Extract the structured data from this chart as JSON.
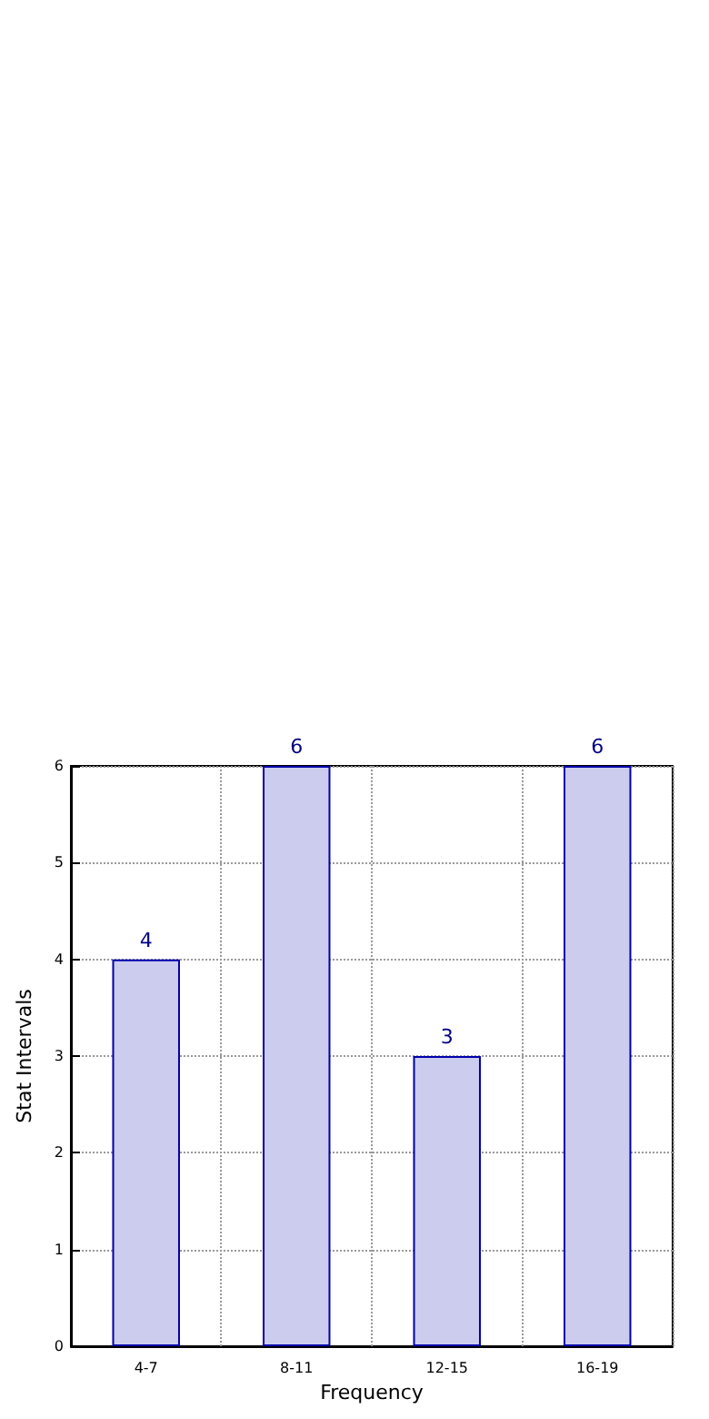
{
  "chart_data": {
    "type": "bar",
    "xlabel": "Frequency",
    "ylabel": "Stat Intervals",
    "categories": [
      "4-7",
      "8-11",
      "12-15",
      "16-19"
    ],
    "values": [
      4,
      6,
      3,
      6
    ],
    "color": "#ccccee",
    "ylim": [
      0,
      6
    ],
    "yticks": [
      0,
      1,
      2,
      3,
      4,
      5,
      6
    ],
    "grid": true,
    "data_labels": true
  }
}
